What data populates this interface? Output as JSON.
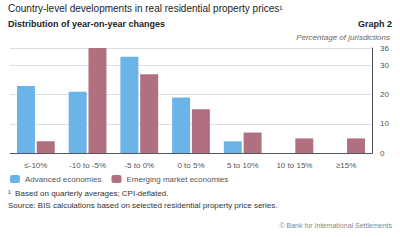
{
  "chart_data": {
    "type": "bar",
    "title": "Country-level developments in real residential property prices¹",
    "subtitle": "Distribution of year-on-year changes",
    "y_label": "Percentage of jurisdictions",
    "annotations": [
      "Graph 2",
      "¹  Based on quarterly averages; CPI-deflated.",
      "Source: BIS calculations based on selected residential property price series.",
      "© Bank for International Settlements"
    ],
    "categories": [
      "≤-10%",
      "-10 to -5%",
      "-5 to 0%",
      "0 to 5%",
      "5 to 10%",
      "10 to 15%",
      "≥15%"
    ],
    "series": [
      {
        "name": "Advanced economies",
        "color": "#6ab4e8",
        "values": [
          23,
          21,
          33,
          19,
          4,
          0,
          0
        ]
      },
      {
        "name": "Emerging market economies",
        "color": "#b07080",
        "values": [
          4,
          36,
          27,
          15,
          7,
          5,
          5
        ]
      }
    ],
    "ylim": [
      0,
      36
    ],
    "yticks": [
      0,
      10,
      20,
      30
    ],
    "grid": true,
    "legend": "lower left"
  }
}
